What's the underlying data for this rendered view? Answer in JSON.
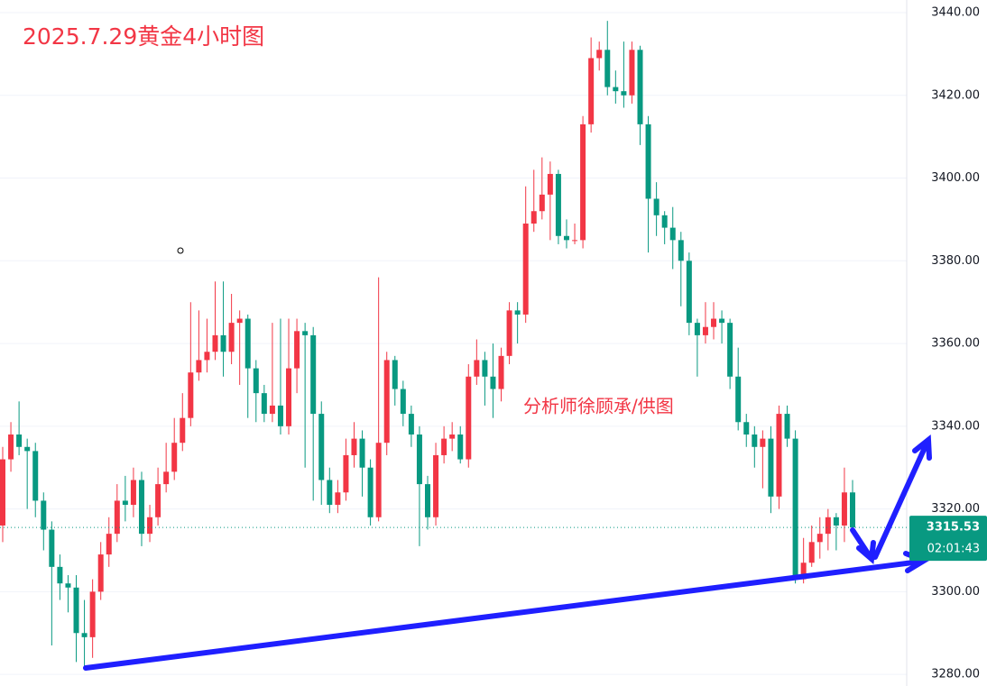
{
  "chart_data": {
    "type": "candlestick",
    "title": "2025.7.29黄金4小时图",
    "annotation": "分析师徐顾承/供图",
    "timer": "02:01:43",
    "up_color": "#f23645",
    "down_color": "#089981",
    "open": [
      3316,
      3332,
      3338,
      3335,
      3334,
      3322,
      3315,
      3306,
      3302,
      3301,
      3290,
      3289,
      3300,
      3309,
      3314,
      3322,
      3321,
      3327,
      3314,
      3318,
      3326,
      3329,
      3336,
      3342,
      3353,
      3356,
      3358,
      3362,
      3358,
      3365,
      3366,
      3354,
      3348,
      3343,
      3345,
      3340,
      3354,
      3363,
      3362,
      3343,
      3327,
      3321,
      3324,
      3333,
      3337,
      3330,
      3318,
      3336,
      3356,
      3349,
      3343,
      3338,
      3326,
      3318,
      3333,
      3337,
      3338,
      3332,
      3352,
      3356,
      3352,
      3349,
      3357,
      3368,
      3367,
      3389,
      3392,
      3396,
      3401,
      3386,
      3385,
      3385,
      3413,
      3429,
      3431,
      3422,
      3421,
      3420,
      3431,
      3413,
      3395,
      3391,
      3388,
      3385,
      3380,
      3365,
      3362,
      3364,
      3366,
      3365,
      3352,
      3341,
      3338,
      3335,
      3337,
      3323,
      3343,
      3337,
      3303,
      3307,
      3312,
      3314,
      3318,
      3316,
      3324
    ],
    "high": [
      3335,
      3341,
      3346,
      3337,
      3336,
      3324,
      3317,
      3309,
      3304,
      3304,
      3298,
      3303,
      3312,
      3318,
      3326,
      3328,
      3330,
      3329,
      3321,
      3330,
      3336,
      3342,
      3348,
      3370,
      3368,
      3366,
      3375,
      3375,
      3372,
      3368,
      3367,
      3356,
      3350,
      3365,
      3366,
      3366,
      3366,
      3365,
      3364,
      3346,
      3330,
      3327,
      3337,
      3341,
      3339,
      3332,
      3376,
      3358,
      3357,
      3351,
      3345,
      3340,
      3328,
      3336,
      3340,
      3341,
      3340,
      3355,
      3361,
      3358,
      3360,
      3359,
      3370,
      3370,
      3398,
      3402,
      3405,
      3404,
      3402,
      3390,
      3389,
      3415,
      3434,
      3433,
      3438,
      3426,
      3433,
      3433,
      3432,
      3415,
      3399,
      3392,
      3393,
      3387,
      3382,
      3366,
      3370,
      3370,
      3368,
      3366,
      3359,
      3343,
      3340,
      3339,
      3340,
      3345,
      3345,
      3339,
      3313,
      3316,
      3318,
      3320,
      3319,
      3330,
      3327
    ],
    "low": [
      3312,
      3329,
      3333,
      3320,
      3318,
      3310,
      3287,
      3298,
      3295,
      3283,
      3282,
      3284,
      3298,
      3306,
      3312,
      3317,
      3318,
      3311,
      3312,
      3316,
      3324,
      3327,
      3334,
      3340,
      3351,
      3353,
      3356,
      3352,
      3355,
      3350,
      3342,
      3341,
      3341,
      3341,
      3338,
      3338,
      3348,
      3330,
      3322,
      3321,
      3319,
      3319,
      3322,
      3330,
      3323,
      3316,
      3317,
      3333,
      3345,
      3340,
      3335,
      3311,
      3315,
      3316,
      3331,
      3334,
      3331,
      3330,
      3350,
      3345,
      3342,
      3346,
      3355,
      3360,
      3365,
      3387,
      3390,
      3385,
      3384,
      3383,
      3384,
      3383,
      3411,
      3426,
      3420,
      3418,
      3417,
      3418,
      3408,
      3382,
      3386,
      3384,
      3378,
      3369,
      3362,
      3352,
      3360,
      3361,
      3360,
      3349,
      3339,
      3335,
      3330,
      3325,
      3319,
      3320,
      3335,
      3302,
      3302,
      3306,
      3308,
      3310,
      3310,
      3312,
      3314
    ],
    "close": [
      3332,
      3338,
      3335,
      3334,
      3322,
      3315,
      3306,
      3302,
      3301,
      3290,
      3289,
      3300,
      3309,
      3314,
      3322,
      3321,
      3327,
      3314,
      3318,
      3326,
      3329,
      3336,
      3342,
      3353,
      3356,
      3358,
      3362,
      3358,
      3365,
      3366,
      3354,
      3348,
      3343,
      3345,
      3340,
      3354,
      3363,
      3362,
      3343,
      3327,
      3321,
      3324,
      3333,
      3337,
      3330,
      3318,
      3336,
      3356,
      3349,
      3343,
      3338,
      3326,
      3318,
      3333,
      3337,
      3338,
      3332,
      3352,
      3356,
      3352,
      3349,
      3357,
      3368,
      3367,
      3389,
      3392,
      3396,
      3401,
      3386,
      3385,
      3385,
      3413,
      3429,
      3431,
      3422,
      3421,
      3420,
      3431,
      3413,
      3395,
      3391,
      3388,
      3385,
      3380,
      3365,
      3362,
      3364,
      3366,
      3365,
      3352,
      3341,
      3338,
      3335,
      3337,
      3323,
      3343,
      3337,
      3303,
      3307,
      3312,
      3314,
      3318,
      3316,
      3324,
      3315.53
    ],
    "ylim": [
      3277.2,
      3443.05
    ],
    "yticks": [
      {
        "value": 3280,
        "label": "3280.00"
      },
      {
        "value": 3300,
        "label": "3300.00"
      },
      {
        "value": 3320,
        "label": "3320.00"
      },
      {
        "value": 3340,
        "label": "3340.00"
      },
      {
        "value": 3360,
        "label": "3360.00"
      },
      {
        "value": 3380,
        "label": "3380.00"
      },
      {
        "value": 3400,
        "label": "3400.00"
      },
      {
        "value": 3420,
        "label": "3420.00"
      },
      {
        "value": 3440,
        "label": "3440.00"
      }
    ],
    "grid": true
  }
}
